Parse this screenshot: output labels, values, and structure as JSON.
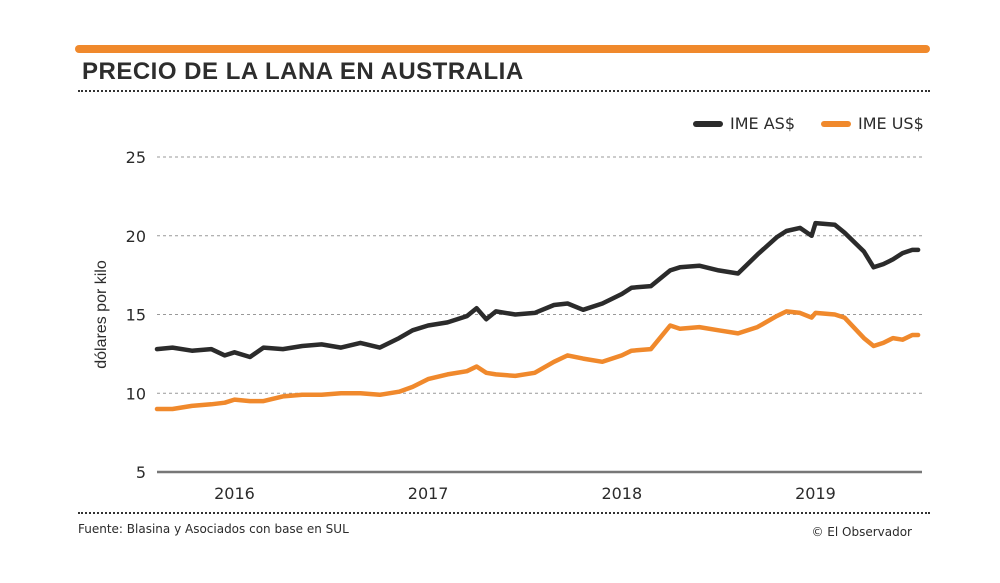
{
  "header": {
    "title": "PRECIO DE LA LANA EN AUSTRALIA"
  },
  "colors": {
    "accent": "#f0892c",
    "dark": "#2b2b2b",
    "grid": "#999999"
  },
  "footer": {
    "source": "Fuente: Blasina y Asociados con base en SUL",
    "credit": "© El Observador"
  },
  "chart_data": {
    "type": "line",
    "title": "PRECIO DE LA LANA EN AUSTRALIA",
    "ylabel": "dólares por kilo",
    "xlabel": "",
    "ylim": [
      5,
      25
    ],
    "yticks": [
      5,
      10,
      15,
      20,
      25
    ],
    "xlim": [
      2015.6,
      2019.55
    ],
    "xtick_labels": [
      {
        "label": "2016",
        "x": 2016
      },
      {
        "label": "2017",
        "x": 2017
      },
      {
        "label": "2018",
        "x": 2018
      },
      {
        "label": "2019",
        "x": 2019
      }
    ],
    "grid": true,
    "legend_position": "top-right",
    "series": [
      {
        "name": "IME AS$",
        "color": "#2b2b2b",
        "x": [
          2015.6,
          2015.68,
          2015.78,
          2015.88,
          2015.95,
          2016.0,
          2016.08,
          2016.15,
          2016.25,
          2016.35,
          2016.45,
          2016.55,
          2016.65,
          2016.75,
          2016.85,
          2016.92,
          2017.0,
          2017.1,
          2017.2,
          2017.25,
          2017.3,
          2017.35,
          2017.45,
          2017.55,
          2017.65,
          2017.72,
          2017.8,
          2017.9,
          2018.0,
          2018.05,
          2018.15,
          2018.25,
          2018.3,
          2018.4,
          2018.5,
          2018.6,
          2018.7,
          2018.8,
          2018.85,
          2018.92,
          2018.98,
          2019.0,
          2019.1,
          2019.15,
          2019.25,
          2019.3,
          2019.35,
          2019.4,
          2019.45,
          2019.5,
          2019.53
        ],
        "values": [
          12.8,
          12.9,
          12.7,
          12.8,
          12.4,
          12.6,
          12.3,
          12.9,
          12.8,
          13.0,
          13.1,
          12.9,
          13.2,
          12.9,
          13.5,
          14.0,
          14.3,
          14.5,
          14.9,
          15.4,
          14.7,
          15.2,
          15.0,
          15.1,
          15.6,
          15.7,
          15.3,
          15.7,
          16.3,
          16.7,
          16.8,
          17.8,
          18.0,
          18.1,
          17.8,
          17.6,
          18.8,
          19.9,
          20.3,
          20.5,
          20.0,
          20.8,
          20.7,
          20.2,
          19.0,
          18.0,
          18.2,
          18.5,
          18.9,
          19.1,
          19.1
        ]
      },
      {
        "name": "IME US$",
        "color": "#f0892c",
        "x": [
          2015.6,
          2015.68,
          2015.78,
          2015.88,
          2015.95,
          2016.0,
          2016.08,
          2016.15,
          2016.25,
          2016.35,
          2016.45,
          2016.55,
          2016.65,
          2016.75,
          2016.85,
          2016.92,
          2017.0,
          2017.1,
          2017.2,
          2017.25,
          2017.3,
          2017.35,
          2017.45,
          2017.55,
          2017.65,
          2017.72,
          2017.8,
          2017.9,
          2018.0,
          2018.05,
          2018.15,
          2018.25,
          2018.3,
          2018.4,
          2018.5,
          2018.6,
          2018.7,
          2018.8,
          2018.85,
          2018.92,
          2018.98,
          2019.0,
          2019.1,
          2019.15,
          2019.25,
          2019.3,
          2019.35,
          2019.4,
          2019.45,
          2019.5,
          2019.53
        ],
        "values": [
          9.0,
          9.0,
          9.2,
          9.3,
          9.4,
          9.6,
          9.5,
          9.5,
          9.8,
          9.9,
          9.9,
          10.0,
          10.0,
          9.9,
          10.1,
          10.4,
          10.9,
          11.2,
          11.4,
          11.7,
          11.3,
          11.2,
          11.1,
          11.3,
          12.0,
          12.4,
          12.2,
          12.0,
          12.4,
          12.7,
          12.8,
          14.3,
          14.1,
          14.2,
          14.0,
          13.8,
          14.2,
          14.9,
          15.2,
          15.1,
          14.8,
          15.1,
          15.0,
          14.8,
          13.5,
          13.0,
          13.2,
          13.5,
          13.4,
          13.7,
          13.7
        ]
      }
    ]
  }
}
